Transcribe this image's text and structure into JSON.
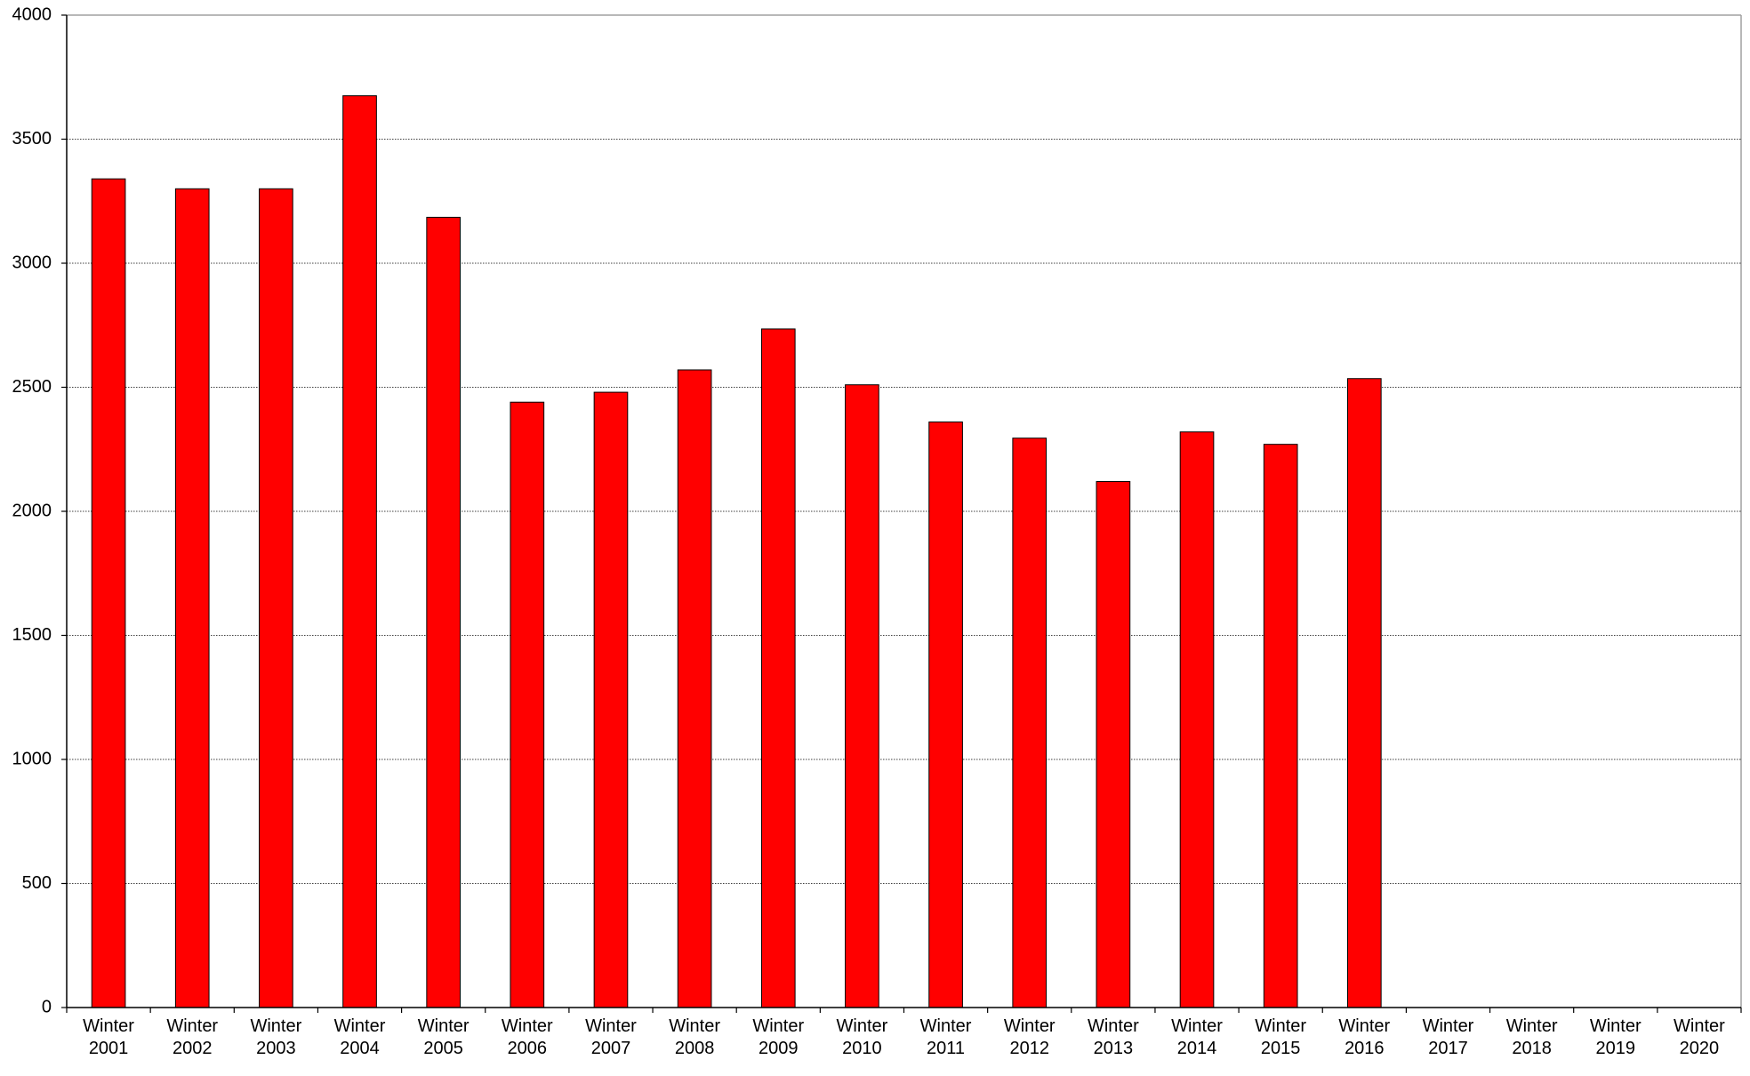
{
  "chart_data": {
    "type": "bar",
    "categories": [
      "Winter 2001",
      "Winter 2002",
      "Winter 2003",
      "Winter 2004",
      "Winter 2005",
      "Winter 2006",
      "Winter 2007",
      "Winter 2008",
      "Winter 2009",
      "Winter 2010",
      "Winter 2011",
      "Winter 2012",
      "Winter 2013",
      "Winter 2014",
      "Winter 2015",
      "Winter 2016",
      "Winter 2017",
      "Winter 2018",
      "Winter 2019",
      "Winter 2020"
    ],
    "values": [
      3340,
      3300,
      3300,
      3675,
      3185,
      2440,
      2480,
      2570,
      2735,
      2510,
      2360,
      2295,
      2120,
      2320,
      2270,
      2535,
      null,
      null,
      null,
      null
    ],
    "color": "#ff0000",
    "ylim": [
      0,
      4000
    ],
    "yticks": [
      0,
      500,
      1000,
      1500,
      2000,
      2500,
      3000,
      3500,
      4000
    ],
    "grid": true
  }
}
